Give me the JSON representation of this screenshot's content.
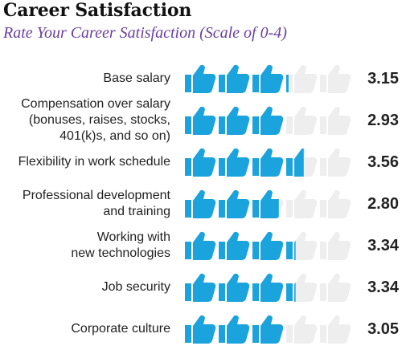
{
  "title": "Career Satisfaction",
  "subtitle": "Rate Your Career Satisfaction (Scale of 0-4)",
  "colors": {
    "thumb_filled": "#1aa3dc",
    "thumb_empty": "#eeeeee",
    "subtitle": "#6b3fa0"
  },
  "chart_data": {
    "type": "bar",
    "title": "Career Satisfaction",
    "subtitle": "Rate Your Career Satisfaction (Scale of 0-4)",
    "scale": [
      0,
      4
    ],
    "mark": "thumbs-up-icon",
    "categories": [
      "Base salary",
      "Compensation over salary (bonuses, raises, stocks, 401(k)s, and so on)",
      "Flexibility in work schedule",
      "Professional development and training",
      "Working with new technologies",
      "Job security",
      "Corporate culture"
    ],
    "display_lines": [
      [
        "Base salary"
      ],
      [
        "Compensation over salary",
        "(bonuses, raises, stocks,",
        "401(k)s, and so on)"
      ],
      [
        "Flexibility in work schedule"
      ],
      [
        "Professional development",
        "and training"
      ],
      [
        "Working with",
        "new technologies"
      ],
      [
        "Job security"
      ],
      [
        "Corporate culture"
      ]
    ],
    "values": [
      3.15,
      2.93,
      3.56,
      2.8,
      3.34,
      3.34,
      3.05
    ],
    "value_labels": [
      "3.15",
      "2.93",
      "3.56",
      "2.80",
      "3.34",
      "3.34",
      "3.05"
    ]
  }
}
